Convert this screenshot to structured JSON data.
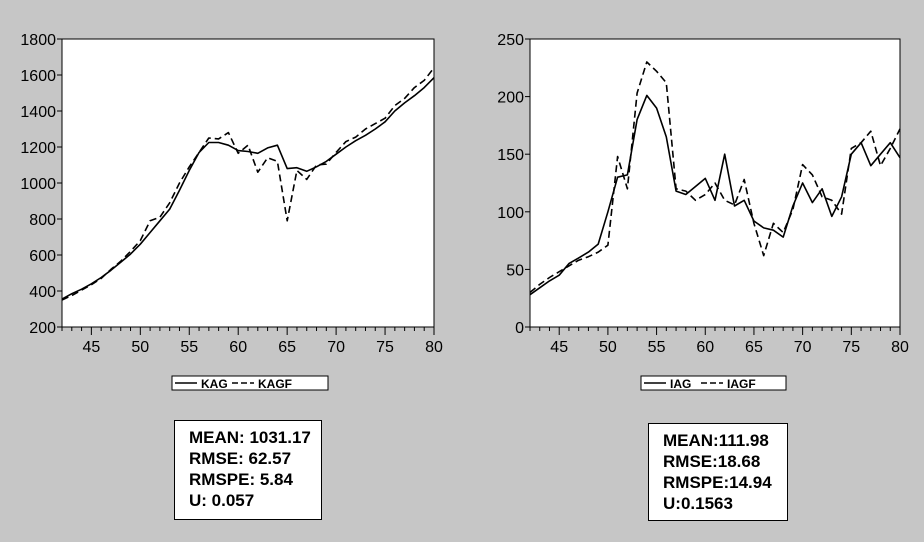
{
  "colors": {
    "background": "#c6c6c6",
    "plot_background": "#ffffff",
    "line": "#000000"
  },
  "chart_data": [
    {
      "type": "line",
      "title": "",
      "xlabel": "",
      "ylabel": "",
      "xlim": [
        42,
        80
      ],
      "ylim": [
        200,
        1800
      ],
      "x_ticks": [
        45,
        50,
        55,
        60,
        65,
        70,
        75,
        80
      ],
      "y_ticks": [
        200,
        400,
        600,
        800,
        1000,
        1200,
        1400,
        1600,
        1800
      ],
      "grid": false,
      "legend": "bottom-center",
      "x": [
        42,
        43,
        44,
        45,
        46,
        47,
        48,
        49,
        50,
        51,
        52,
        53,
        54,
        55,
        56,
        57,
        58,
        59,
        60,
        61,
        62,
        63,
        64,
        65,
        66,
        67,
        68,
        69,
        70,
        71,
        72,
        73,
        74,
        75,
        76,
        77,
        78,
        79,
        80
      ],
      "series": [
        {
          "name": "KAG",
          "style": "solid",
          "values": [
            355,
            385,
            410,
            440,
            475,
            515,
            560,
            605,
            660,
            725,
            790,
            855,
            960,
            1070,
            1170,
            1225,
            1225,
            1210,
            1180,
            1175,
            1165,
            1195,
            1210,
            1080,
            1085,
            1065,
            1090,
            1120,
            1160,
            1200,
            1235,
            1265,
            1300,
            1340,
            1400,
            1445,
            1485,
            1530,
            1585
          ]
        },
        {
          "name": "KAGF",
          "style": "dashed",
          "values": [
            350,
            375,
            405,
            435,
            470,
            520,
            565,
            620,
            680,
            790,
            810,
            890,
            1000,
            1090,
            1170,
            1250,
            1245,
            1280,
            1165,
            1210,
            1060,
            1140,
            1120,
            790,
            1070,
            1020,
            1100,
            1105,
            1170,
            1230,
            1255,
            1300,
            1330,
            1360,
            1430,
            1470,
            1530,
            1570,
            1640
          ]
        }
      ],
      "stats": {
        "mean": "MEAN: 1031.17",
        "rmse": "RMSE: 62.57",
        "rmspe": "RMSPE: 5.84",
        "u": "U: 0.057"
      }
    },
    {
      "type": "line",
      "title": "",
      "xlabel": "",
      "ylabel": "",
      "xlim": [
        42,
        80
      ],
      "ylim": [
        0,
        250
      ],
      "x_ticks": [
        45,
        50,
        55,
        60,
        65,
        70,
        75,
        80
      ],
      "y_ticks": [
        0,
        50,
        100,
        150,
        200,
        250
      ],
      "grid": false,
      "legend": "bottom-center",
      "x": [
        42,
        43,
        44,
        45,
        46,
        47,
        48,
        49,
        50,
        51,
        52,
        53,
        54,
        55,
        56,
        57,
        58,
        59,
        60,
        61,
        62,
        63,
        64,
        65,
        66,
        67,
        68,
        69,
        70,
        71,
        72,
        73,
        74,
        75,
        76,
        77,
        78,
        79,
        80
      ],
      "series": [
        {
          "name": "IAG",
          "style": "solid",
          "values": [
            28,
            34,
            40,
            45,
            55,
            60,
            65,
            72,
            100,
            130,
            132,
            180,
            201,
            190,
            165,
            118,
            115,
            122,
            129,
            110,
            150,
            105,
            110,
            92,
            86,
            84,
            78,
            105,
            125,
            108,
            120,
            96,
            113,
            150,
            160,
            140,
            150,
            160,
            147
          ]
        },
        {
          "name": "IAGF",
          "style": "dashed",
          "values": [
            30,
            37,
            43,
            48,
            53,
            58,
            61,
            65,
            71,
            148,
            120,
            203,
            230,
            222,
            212,
            120,
            118,
            110,
            115,
            125,
            110,
            106,
            128,
            90,
            62,
            90,
            82,
            102,
            141,
            132,
            113,
            110,
            98,
            155,
            160,
            170,
            140,
            155,
            172
          ]
        }
      ],
      "stats": {
        "mean": "MEAN:111.98",
        "rmse": "RMSE:18.68",
        "rmspe": "RMSPE:14.94",
        "u": "U:0.1563"
      }
    }
  ]
}
